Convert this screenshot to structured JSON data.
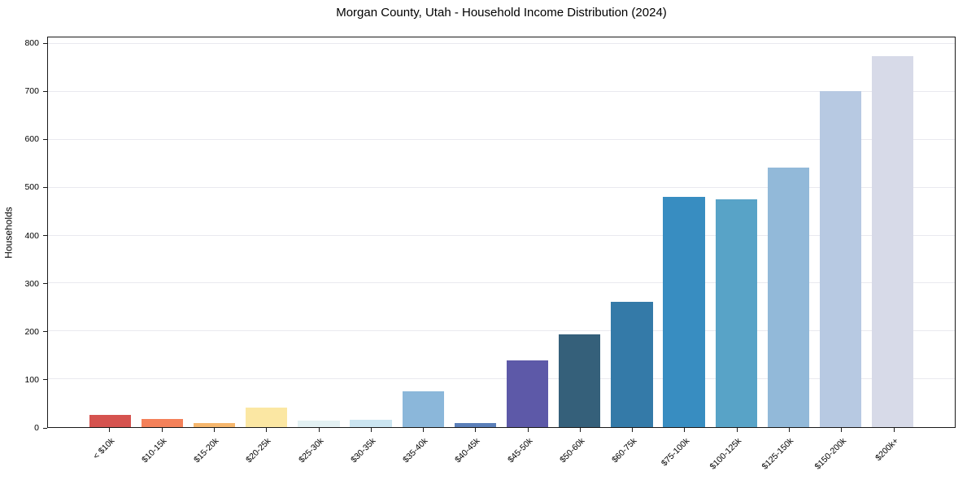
{
  "title": "Morgan County, Utah - Household Income Distribution (2024)",
  "chart_data": {
    "type": "bar",
    "title": "Morgan County, Utah - Household Income Distribution (2024)",
    "xlabel": "",
    "ylabel": "Households",
    "categories": [
      "< $10k",
      "$10-15k",
      "$15-20k",
      "$20-25k",
      "$25-30k",
      "$30-35k",
      "$35-40k",
      "$40-45k",
      "$45-50k",
      "$50-60k",
      "$60-75k",
      "$75-100k",
      "$100-125k",
      "$125-150k",
      "$150-200k",
      "$200k+"
    ],
    "values": [
      26,
      17,
      9,
      40,
      13,
      15,
      75,
      8,
      140,
      193,
      262,
      480,
      475,
      542,
      701,
      775
    ],
    "bar_colors": [
      "#d5534f",
      "#f4815a",
      "#f6b76d",
      "#fbe7a3",
      "#e3f1f3",
      "#cbe5f1",
      "#8bb7da",
      "#5b7fb9",
      "#5d59a8",
      "#35607a",
      "#347aa8",
      "#388dc1",
      "#58a3c7",
      "#92b9d9",
      "#b7c9e2",
      "#d7dae8"
    ],
    "ylim": [
      0,
      800
    ],
    "yticks": [
      0,
      100,
      200,
      300,
      400,
      500,
      600,
      700,
      800
    ],
    "grid": "horizontal",
    "legend": "none",
    "x_tick_rotation": 45
  },
  "colors": {
    "background": "#ffffff",
    "axis": "#1a1a1a",
    "grid": "#e9e9ef",
    "text": "#000000"
  }
}
